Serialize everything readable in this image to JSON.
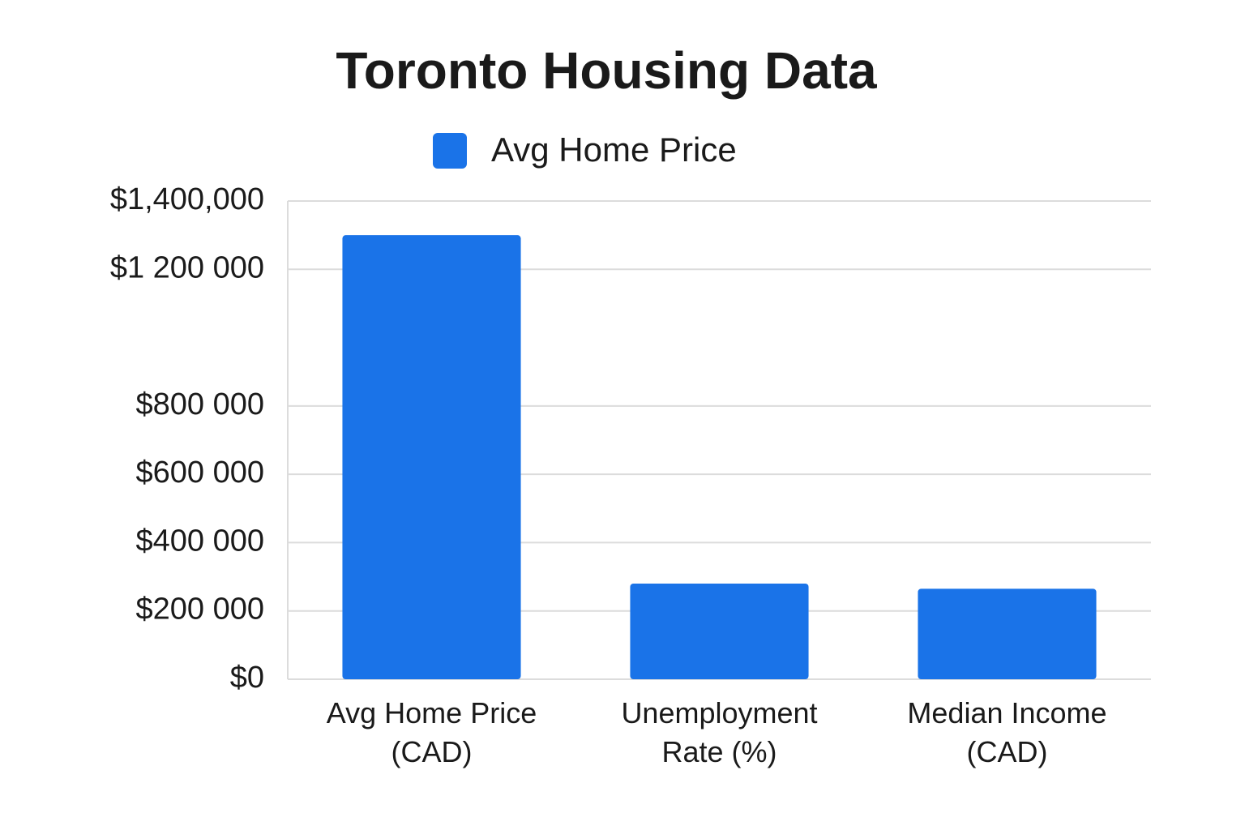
{
  "chart_data": {
    "type": "bar",
    "title": "Toronto Housing Data",
    "legend": "Avg Home Price",
    "categories": [
      "Avg Home Price (CAD)",
      "Unemployment Rate (%)",
      "Median Income (CAD)"
    ],
    "values": [
      1300000,
      280000,
      265000
    ],
    "color": "#1a73e8",
    "ylim": [
      0,
      1400000
    ],
    "yticks": [
      {
        "value": 0,
        "label": "$0"
      },
      {
        "value": 200000,
        "label": "$200 000"
      },
      {
        "value": 400000,
        "label": "$400 000"
      },
      {
        "value": 600000,
        "label": "$600 000"
      },
      {
        "value": 800000,
        "label": "$800 000"
      },
      {
        "value": 1200000,
        "label": "$1 200 000"
      },
      {
        "value": 1400000,
        "label": "$1,400,000"
      }
    ],
    "grid": true
  }
}
